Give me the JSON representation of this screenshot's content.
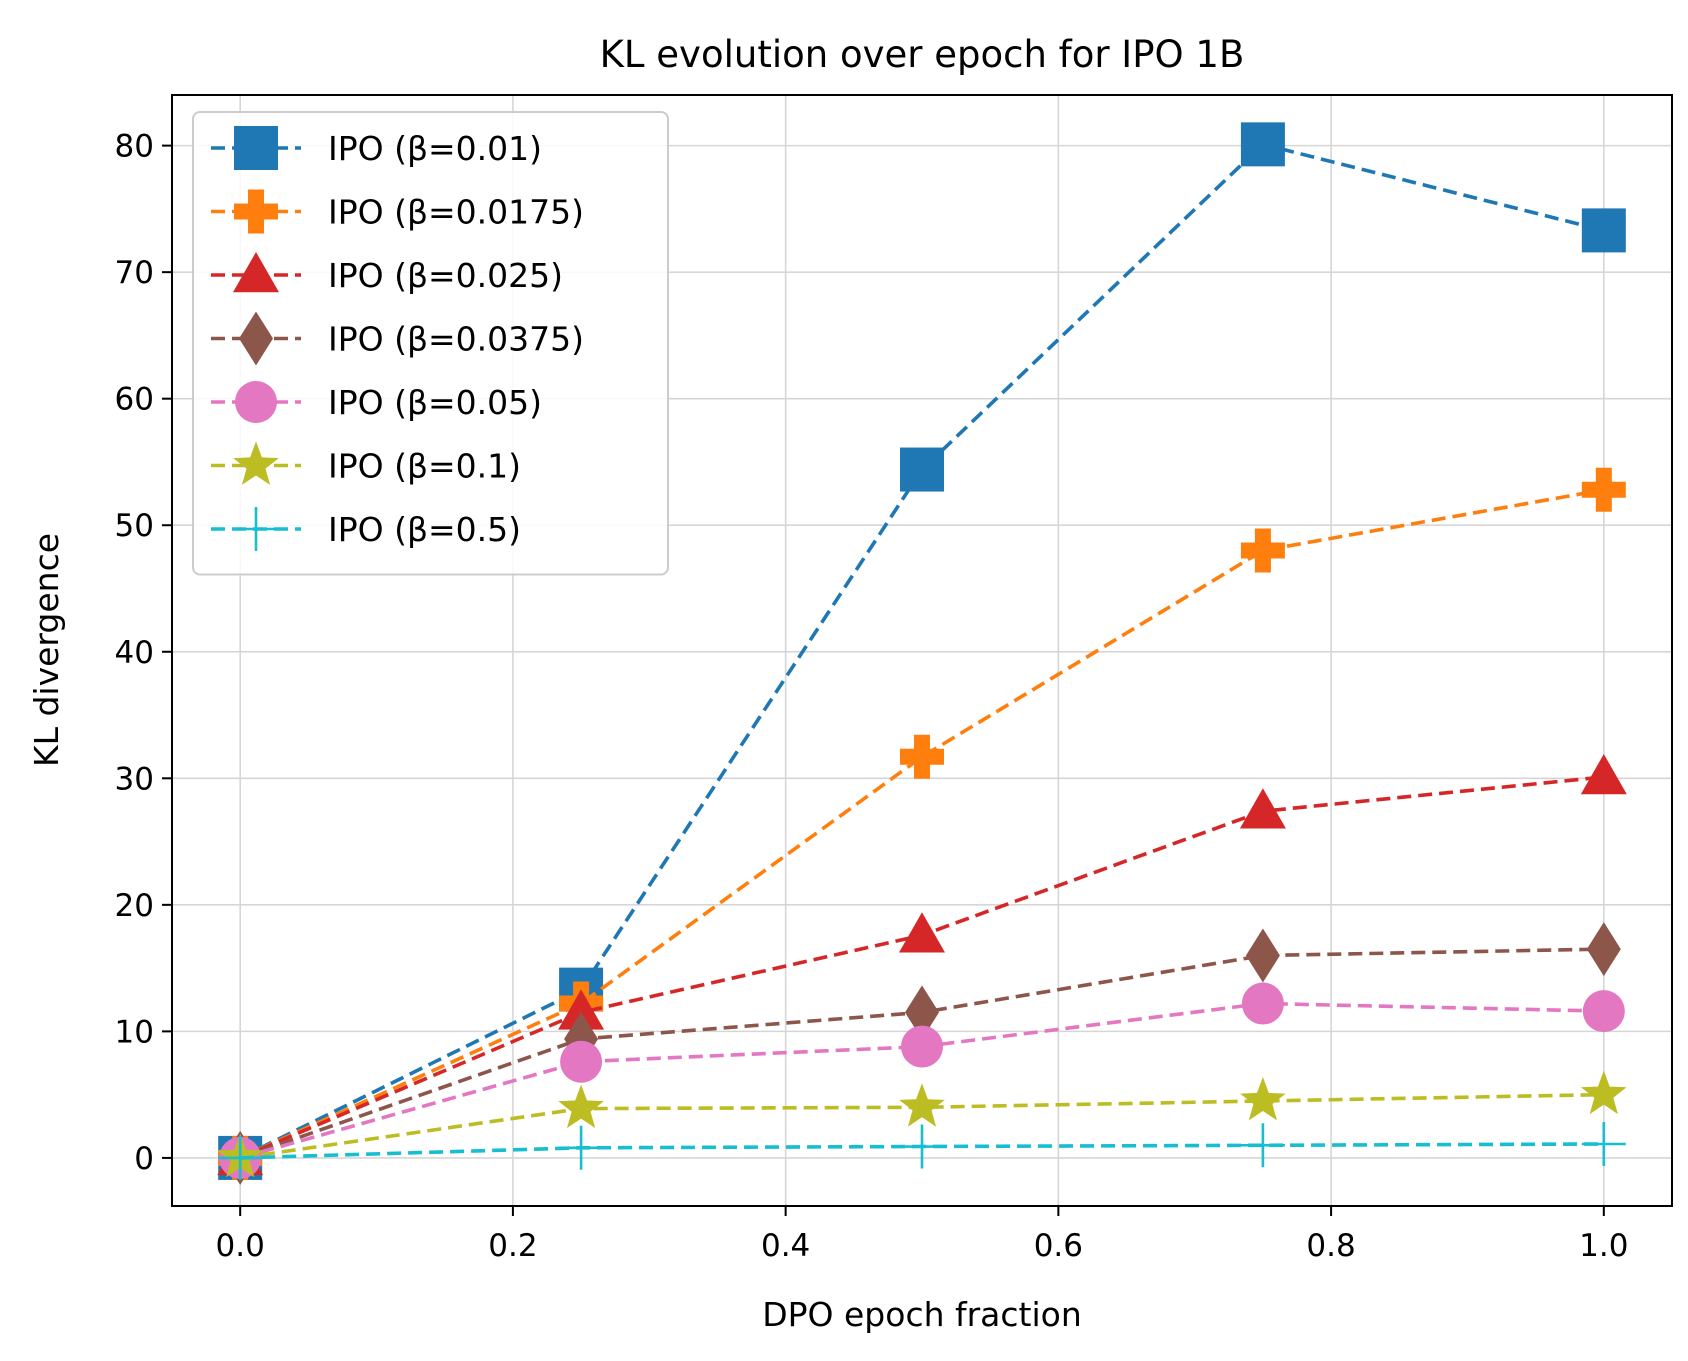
{
  "chart_data": {
    "type": "line",
    "title": "KL evolution over epoch for IPO 1B",
    "xlabel": "DPO epoch fraction",
    "ylabel": "KL divergence",
    "xlim": [
      -0.05,
      1.05
    ],
    "ylim": [
      -3.8,
      84
    ],
    "xticks": [
      "0.0",
      "0.2",
      "0.4",
      "0.6",
      "0.8",
      "1.0"
    ],
    "yticks": [
      "0",
      "10",
      "20",
      "30",
      "40",
      "50",
      "60",
      "70",
      "80"
    ],
    "grid": true,
    "legend_position": "top-left",
    "x": [
      0.0,
      0.25,
      0.5,
      0.75,
      1.0
    ],
    "series": [
      {
        "name": "IPO (β=0.01)",
        "color": "#1f77b4",
        "marker": "square",
        "values": [
          0.0,
          13.3,
          54.4,
          80.1,
          73.3
        ]
      },
      {
        "name": "IPO (β=0.0175)",
        "color": "#ff7f0e",
        "marker": "plus",
        "values": [
          0.0,
          12.2,
          31.7,
          48.0,
          52.8
        ]
      },
      {
        "name": "IPO (β=0.025)",
        "color": "#d62728",
        "marker": "triangle",
        "values": [
          0.0,
          11.5,
          17.6,
          27.4,
          30.1
        ]
      },
      {
        "name": "IPO (β=0.0375)",
        "color": "#8c564b",
        "marker": "diamond",
        "values": [
          0.0,
          9.4,
          11.5,
          16.0,
          16.5
        ]
      },
      {
        "name": "IPO (β=0.05)",
        "color": "#e377c2",
        "marker": "circle",
        "values": [
          0.0,
          7.6,
          8.8,
          12.2,
          11.6
        ]
      },
      {
        "name": "IPO (β=0.1)",
        "color": "#bcbd22",
        "marker": "star",
        "values": [
          0.0,
          3.9,
          4.0,
          4.5,
          5.0
        ]
      },
      {
        "name": "IPO (β=0.5)",
        "color": "#17becf",
        "marker": "thin-plus",
        "values": [
          0.0,
          0.8,
          0.9,
          1.0,
          1.1
        ]
      }
    ]
  }
}
